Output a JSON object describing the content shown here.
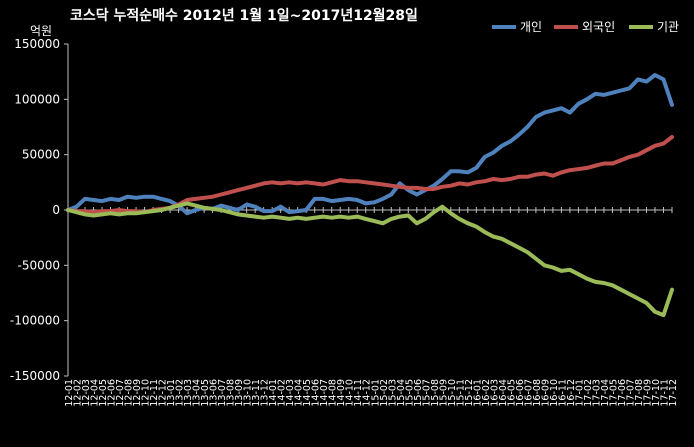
{
  "chart_data": {
    "type": "line",
    "title": "코스닥 누적순매수 2012년 1월 1일~2017년12월28일",
    "ylabel": "억원",
    "xlabel": "",
    "ylim": [
      -150000,
      150000
    ],
    "yticks": [
      150000,
      100000,
      50000,
      0,
      -50000,
      -100000,
      -150000
    ],
    "grid": false,
    "legend": "top-right",
    "categories": [
      "12-01",
      "12-02",
      "12-03",
      "12-04",
      "12-05",
      "12-06",
      "12-07",
      "12-08",
      "12-09",
      "12-10",
      "12-11",
      "12-12",
      "13-01",
      "13-02",
      "13-03",
      "13-04",
      "13-05",
      "13-06",
      "13-07",
      "13-08",
      "13-09",
      "13-10",
      "13-11",
      "13-12",
      "14-01",
      "14-02",
      "14-03",
      "14-04",
      "14-05",
      "14-06",
      "14-07",
      "14-08",
      "14-09",
      "14-10",
      "14-11",
      "14-12",
      "15-01",
      "15-02",
      "15-03",
      "15-04",
      "15-05",
      "15-06",
      "15-07",
      "15-08",
      "15-09",
      "15-10",
      "15-11",
      "15-12",
      "16-01",
      "16-02",
      "16-03",
      "16-04",
      "16-05",
      "16-06",
      "16-07",
      "16-08",
      "16-09",
      "16-10",
      "16-11",
      "16-12",
      "17-01",
      "17-02",
      "17-03",
      "17-04",
      "17-05",
      "17-06",
      "17-07",
      "17-08",
      "17-09",
      "17-10",
      "17-11",
      "17-12"
    ],
    "series": [
      {
        "name": "개인",
        "color": "#4f81bd",
        "values": [
          0,
          3000,
          10000,
          9000,
          8000,
          10000,
          9000,
          12000,
          11000,
          12000,
          12000,
          10000,
          8000,
          4000,
          -3000,
          0,
          2000,
          1000,
          4000,
          2000,
          0,
          5000,
          3000,
          -1000,
          -1000,
          3000,
          -2000,
          -1000,
          0,
          10000,
          10000,
          8000,
          9000,
          10000,
          9000,
          6000,
          7000,
          10000,
          14000,
          24000,
          18000,
          14000,
          18000,
          22000,
          28000,
          35000,
          35000,
          34000,
          38000,
          48000,
          52000,
          58000,
          62000,
          68000,
          75000,
          84000,
          88000,
          90000,
          92000,
          88000,
          96000,
          100000,
          105000,
          104000,
          106000,
          108000,
          110000,
          118000,
          116000,
          122000,
          118000,
          95000
        ]
      },
      {
        "name": "외국인",
        "color": "#c0504d",
        "values": [
          0,
          -1000,
          -1000,
          -2000,
          -1000,
          -1000,
          0,
          -1000,
          -1000,
          -2000,
          0,
          1000,
          2000,
          5000,
          9000,
          10000,
          11000,
          12000,
          14000,
          16000,
          18000,
          20000,
          22000,
          24000,
          25000,
          24000,
          25000,
          24000,
          25000,
          24000,
          23000,
          25000,
          27000,
          26000,
          26000,
          25000,
          24000,
          23000,
          22000,
          21000,
          20000,
          20000,
          19000,
          19000,
          21000,
          22000,
          24000,
          23000,
          25000,
          26000,
          28000,
          27000,
          28000,
          30000,
          30000,
          32000,
          33000,
          31000,
          34000,
          36000,
          37000,
          38000,
          40000,
          42000,
          42000,
          45000,
          48000,
          50000,
          54000,
          58000,
          60000,
          66000
        ]
      },
      {
        "name": "기관",
        "color": "#9bbb59",
        "values": [
          0,
          -2000,
          -4000,
          -5000,
          -4000,
          -3000,
          -4000,
          -3000,
          -3000,
          -2000,
          -1000,
          0,
          2000,
          4000,
          6000,
          4000,
          2000,
          1000,
          0,
          -2000,
          -4000,
          -5000,
          -6000,
          -7000,
          -6000,
          -7000,
          -8000,
          -7000,
          -8000,
          -7000,
          -6000,
          -7000,
          -6000,
          -7000,
          -6000,
          -8000,
          -10000,
          -12000,
          -8000,
          -6000,
          -5000,
          -12000,
          -8000,
          -2000,
          3000,
          -3000,
          -8000,
          -12000,
          -15000,
          -20000,
          -24000,
          -26000,
          -30000,
          -34000,
          -38000,
          -44000,
          -50000,
          -52000,
          -55000,
          -54000,
          -58000,
          -62000,
          -65000,
          -66000,
          -68000,
          -72000,
          -76000,
          -80000,
          -84000,
          -92000,
          -95000,
          -72000
        ]
      }
    ]
  }
}
